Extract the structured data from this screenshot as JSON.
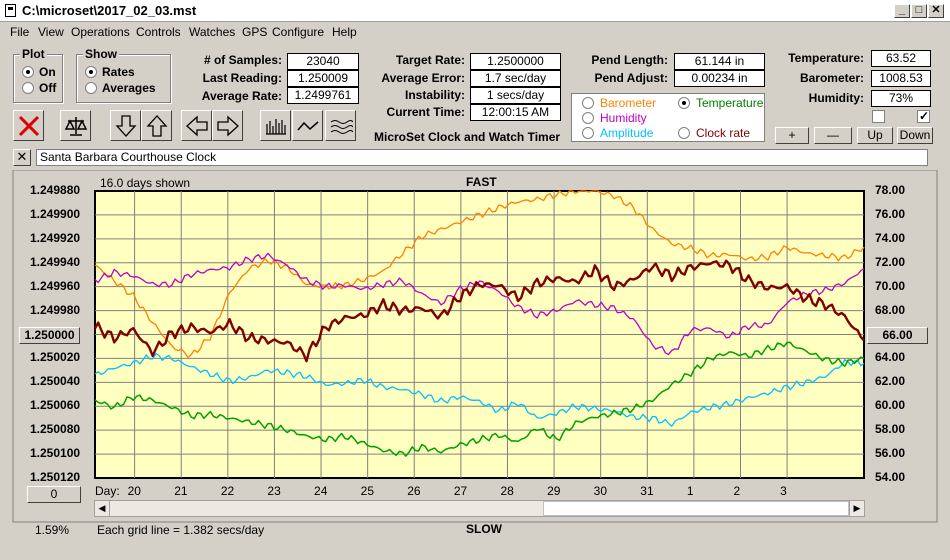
{
  "window": {
    "title": "C:\\microset\\2017_02_03.mst"
  },
  "menu": [
    "File",
    "View",
    "Operations",
    "Controls",
    "Watches",
    "GPS",
    "Configure",
    "Help"
  ],
  "plot_group": {
    "title": "Plot",
    "options": [
      "On",
      "Off"
    ],
    "selected": "On"
  },
  "show_group": {
    "title": "Show",
    "options": [
      "Rates",
      "Averages"
    ],
    "selected": "Rates"
  },
  "stats": {
    "samples_label": "# of Samples:",
    "samples": "23040",
    "last_reading_label": "Last Reading:",
    "last_reading": "1.250009",
    "average_rate_label": "Average Rate:",
    "average_rate": "1.2499761",
    "target_rate_label": "Target Rate:",
    "target_rate": "1.2500000",
    "average_error_label": "Average Error:",
    "average_error": "1.7 sec/day",
    "instability_label": "Instability:",
    "instability": "1 secs/day",
    "current_time_label": "Current Time:",
    "current_time": "12:00:15 AM",
    "pend_length_label": "Pend Length:",
    "pend_length": "61.144 in",
    "pend_adjust_label": "Pend Adjust:",
    "pend_adjust": "0.00234 in",
    "temperature_label": "Temperature:",
    "temperature": "63.52",
    "barometer_label": "Barometer:",
    "barometer": "1008.53",
    "humidity_label": "Humidity:",
    "humidity": "73%"
  },
  "app_name": "MicroSet Clock and Watch Timer",
  "legend": [
    {
      "label": "Barometer",
      "color": "#ff8000",
      "selected": false
    },
    {
      "label": "Temperature",
      "color": "#008000",
      "selected": true
    },
    {
      "label": "Humidity",
      "color": "#c000c0",
      "selected": false
    },
    {
      "label": "Amplitude",
      "color": "#00c0ff",
      "selected": false
    },
    {
      "label": "Clock rate",
      "color": "#800000",
      "selected": false
    }
  ],
  "right_buttons": {
    "plus": "+",
    "minus": "—",
    "up": "Up",
    "down": "Down"
  },
  "checkboxes": [
    {
      "checked": false
    },
    {
      "checked": true
    }
  ],
  "clock_name": "Santa Barbara Courthouse Clock",
  "chart_header": {
    "days_shown": "16.0 days shown",
    "top": "FAST",
    "bottom": "SLOW"
  },
  "center_value_left": "1.250000",
  "center_value_right": "66.00",
  "offset_button": "0",
  "percent": "1.59%",
  "grid_note": "Each grid line = 1.382 secs/day",
  "day_label": "Day:",
  "icons": {
    "clear": "red-x-icon",
    "scale": "balance-icon",
    "down": "arrow-down-icon",
    "up": "arrow-up-icon",
    "left": "arrow-left-icon",
    "right": "arrow-right-icon",
    "bars": "bar-graph-icon",
    "line": "line-graph-icon",
    "wave": "wave-icon"
  },
  "chart_data": {
    "type": "line",
    "x_ticks": [
      "20",
      "21",
      "22",
      "23",
      "24",
      "25",
      "26",
      "27",
      "28",
      "29",
      "30",
      "31",
      "1",
      "2",
      "3"
    ],
    "y_left_ticks": [
      "1.249880",
      "1.249900",
      "1.249920",
      "1.249940",
      "1.249960",
      "1.249980",
      "1.250000",
      "1.250020",
      "1.250040",
      "1.250060",
      "1.250080",
      "1.250100",
      "1.250120"
    ],
    "y_right_ticks": [
      "78.00",
      "76.00",
      "74.00",
      "72.00",
      "70.00",
      "68.00",
      "66.00",
      "64.00",
      "62.00",
      "60.00",
      "58.00",
      "56.00",
      "54.00"
    ],
    "ylim_left": [
      1.24988,
      1.25012
    ],
    "ylim_right": [
      54,
      78
    ],
    "series": [
      {
        "key": "barometer",
        "color": "#ff8000",
        "width": 1.3,
        "x": [
          0,
          0.4,
          0.8,
          1.2,
          1.6,
          2.0,
          2.4,
          2.8,
          3.2,
          3.6,
          4.0,
          4.4,
          4.8,
          5.2,
          5.6,
          6.0,
          6.4,
          6.8,
          7.2,
          7.6,
          8.0,
          8.4,
          8.8,
          9.2,
          9.6,
          10.0,
          10.4,
          10.8,
          11.2,
          11.6,
          12.0,
          12.4,
          12.8,
          13.2,
          13.6,
          14.0,
          14.4,
          14.8,
          15.2,
          15.6,
          16.0
        ],
        "y": [
          71.8,
          70.5,
          69.2,
          67.0,
          65.0,
          64.2,
          65.8,
          69.5,
          71.5,
          72.2,
          71.6,
          70.2,
          70.0,
          70.1,
          70.6,
          71.3,
          72.8,
          74.2,
          74.8,
          75.4,
          76.0,
          76.6,
          77.1,
          77.3,
          77.7,
          78.0,
          78.0,
          77.6,
          76.6,
          74.8,
          73.6,
          73.2,
          72.6,
          72.7,
          72.3,
          72.5,
          73.3,
          72.8,
          72.6,
          72.4,
          73.3
        ]
      },
      {
        "key": "humidity",
        "color": "#c000c0",
        "width": 1.3,
        "x": [
          0,
          0.4,
          0.8,
          1.2,
          1.6,
          2.0,
          2.4,
          2.8,
          3.2,
          3.6,
          4.0,
          4.4,
          4.8,
          5.2,
          5.6,
          6.0,
          6.4,
          6.8,
          7.2,
          7.6,
          8.0,
          8.4,
          8.8,
          9.2,
          9.6,
          10.0,
          10.4,
          10.8,
          11.2,
          11.6,
          12.0,
          12.4,
          12.8,
          13.2,
          13.6,
          14.0,
          14.4,
          14.8,
          15.2,
          15.6,
          16.0
        ],
        "y": [
          70.5,
          71.2,
          70.9,
          70.2,
          70.2,
          71.0,
          71.4,
          71.6,
          72.3,
          72.6,
          71.8,
          70.5,
          70.0,
          70.1,
          69.8,
          70.2,
          70.5,
          69.4,
          68.6,
          69.8,
          70.4,
          69.6,
          68.3,
          67.6,
          68.0,
          68.8,
          68.5,
          68.2,
          67.3,
          65.1,
          64.4,
          66.4,
          66.5,
          65.8,
          66.7,
          66.8,
          68.7,
          69.4,
          69.7,
          70.3,
          71.5
        ]
      },
      {
        "key": "amplitude",
        "color": "#00c0ff",
        "width": 1.3,
        "x": [
          0,
          0.4,
          0.8,
          1.2,
          1.6,
          2.0,
          2.4,
          2.8,
          3.2,
          3.6,
          4.0,
          4.4,
          4.8,
          5.2,
          5.6,
          6.0,
          6.4,
          6.8,
          7.2,
          7.6,
          8.0,
          8.4,
          8.8,
          9.2,
          9.6,
          10.0,
          10.4,
          10.8,
          11.2,
          11.6,
          12.0,
          12.4,
          12.8,
          13.2,
          13.6,
          14.0,
          14.4,
          14.8,
          15.2,
          15.6,
          16.0
        ],
        "y": [
          62.6,
          63.2,
          63.6,
          64.2,
          64.0,
          63.3,
          62.7,
          62.1,
          62.4,
          63.0,
          62.8,
          62.5,
          61.8,
          61.9,
          62.2,
          61.6,
          61.4,
          61.0,
          60.4,
          60.8,
          60.4,
          59.6,
          60.3,
          59.0,
          59.4,
          60.0,
          59.8,
          59.6,
          59.1,
          59.0,
          58.5,
          59.5,
          59.9,
          60.2,
          60.7,
          61.1,
          61.6,
          62.0,
          62.5,
          63.7,
          63.6
        ]
      },
      {
        "key": "temperature",
        "color": "#00a000",
        "width": 1.5,
        "x": [
          0,
          0.4,
          0.8,
          1.2,
          1.6,
          2.0,
          2.4,
          2.8,
          3.2,
          3.6,
          4.0,
          4.4,
          4.8,
          5.2,
          5.6,
          6.0,
          6.4,
          6.8,
          7.2,
          7.6,
          8.0,
          8.4,
          8.8,
          9.2,
          9.6,
          10.0,
          10.4,
          10.8,
          11.2,
          11.6,
          12.0,
          12.4,
          12.8,
          13.2,
          13.6,
          14.0,
          14.4,
          14.8,
          15.2,
          15.6,
          16.0
        ],
        "y": [
          60.5,
          59.9,
          60.8,
          60.5,
          59.9,
          59.2,
          59.3,
          59.0,
          58.7,
          58.4,
          58.0,
          57.5,
          57.2,
          57.5,
          56.9,
          56.3,
          56.0,
          56.6,
          56.2,
          56.8,
          57.2,
          57.6,
          57.0,
          58.2,
          57.2,
          58.6,
          59.1,
          59.4,
          59.8,
          60.5,
          61.8,
          62.8,
          64.0,
          64.5,
          64.2,
          64.8,
          65.3,
          64.6,
          63.9,
          63.6,
          64.0
        ]
      },
      {
        "key": "clock_rate",
        "color": "#800000",
        "width": 2.4,
        "x": [
          0,
          0.4,
          0.8,
          1.2,
          1.6,
          2.0,
          2.4,
          2.8,
          3.2,
          3.6,
          4.0,
          4.4,
          4.8,
          5.2,
          5.6,
          6.0,
          6.4,
          6.8,
          7.2,
          7.6,
          8.0,
          8.4,
          8.8,
          9.2,
          9.6,
          10.0,
          10.4,
          10.8,
          11.2,
          11.6,
          12.0,
          12.4,
          12.8,
          13.2,
          13.6,
          14.0,
          14.4,
          14.8,
          15.2,
          15.6,
          16.0
        ],
        "y": [
          66.7,
          65.7,
          66.4,
          64.5,
          66.1,
          66.6,
          66.2,
          66.9,
          65.7,
          65.5,
          65.3,
          64.2,
          66.6,
          67.4,
          67.6,
          68.5,
          68.0,
          68.2,
          67.5,
          69.2,
          70.2,
          70.1,
          69.1,
          70.3,
          70.7,
          70.4,
          71.4,
          70.0,
          70.6,
          71.7,
          70.9,
          71.6,
          72.0,
          71.8,
          70.5,
          69.9,
          70.0,
          69.0,
          68.5,
          67.5,
          65.5
        ]
      }
    ]
  }
}
